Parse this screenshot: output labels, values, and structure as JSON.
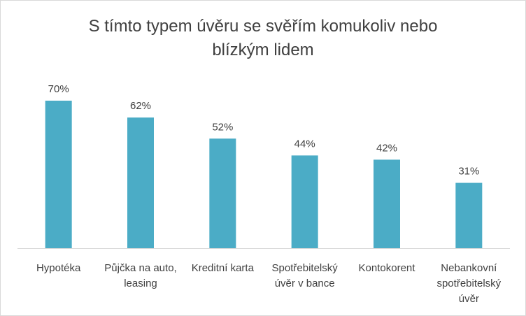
{
  "chart_data": {
    "type": "bar",
    "title_lines": [
      "S tímto typem úvěru se svěřím komukoliv nebo",
      "blízkým lidem"
    ],
    "categories": [
      [
        "Hypotéka"
      ],
      [
        "Půjčka na auto,",
        "leasing"
      ],
      [
        "Kreditní karta"
      ],
      [
        "Spotřebitelský",
        "úvěr v bance"
      ],
      [
        "Kontokorent"
      ],
      [
        "Nebankovní",
        "spotřebitelský",
        "úvěr"
      ]
    ],
    "values": [
      70,
      62,
      52,
      44,
      42,
      31
    ],
    "value_labels": [
      "70%",
      "62%",
      "52%",
      "44%",
      "42%",
      "31%"
    ],
    "ylim": [
      0,
      70
    ],
    "grid": false,
    "legend": "none",
    "bar_color": "#4BACC6",
    "axis_color": "#d9d9d9"
  }
}
